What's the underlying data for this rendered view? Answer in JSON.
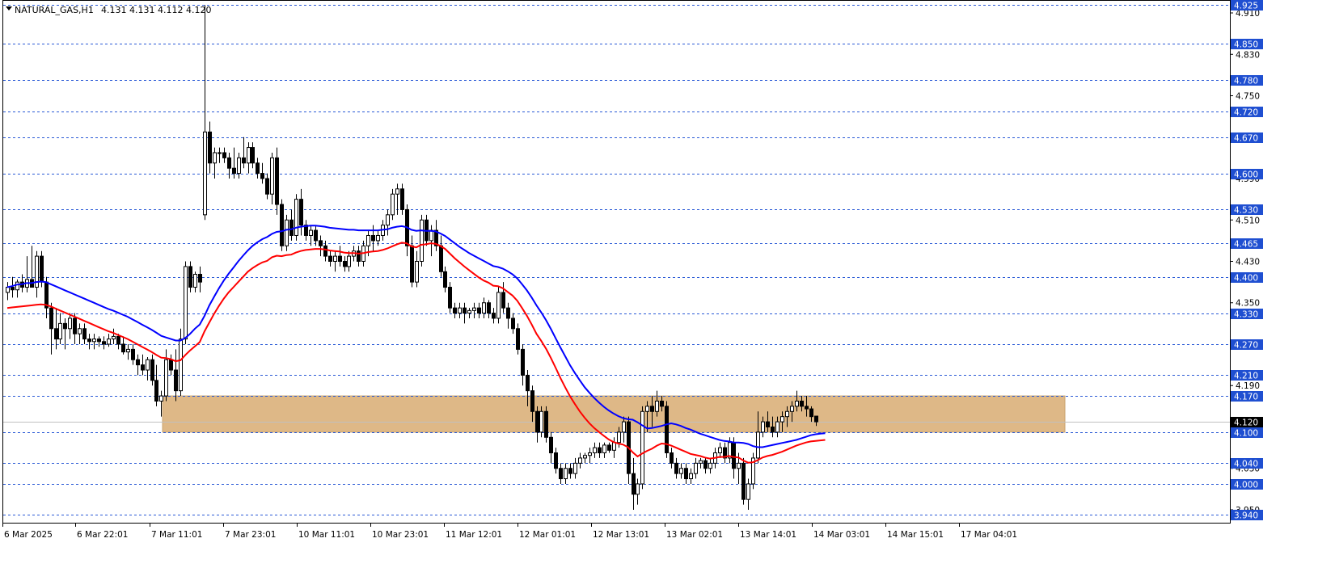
{
  "header": {
    "symbol_timeframe": "NATURAL_GAS,H1",
    "ohlc": "4.131 4.131 4.112 4.120"
  },
  "colors": {
    "background": "#ffffff",
    "level_line": "#2a5ad6",
    "level_tag_bg": "#1f4fd1",
    "zone_fill": "#deb887",
    "ma_fast": "#0000ff",
    "ma_slow": "#ff0000",
    "candle_bear": "#000000",
    "candle_bull": "#ffffff",
    "current_tag_bg": "#000000"
  },
  "chart_data": {
    "type": "candlestick",
    "instrument": "NATURAL_GAS",
    "timeframe": "H1",
    "y_range": [
      3.925,
      4.935
    ],
    "price_axis_ticks": [
      "4.910",
      "4.830",
      "4.750",
      "4.670",
      "4.590",
      "4.510",
      "4.430",
      "4.350",
      "4.270",
      "4.190",
      "4.110",
      "4.030",
      "3.950"
    ],
    "time_labels": [
      "6 Mar 2025",
      "6 Mar 22:01",
      "7 Mar 11:01",
      "7 Mar 23:01",
      "10 Mar 11:01",
      "10 Mar 23:01",
      "11 Mar 12:01",
      "12 Mar 01:01",
      "12 Mar 13:01",
      "13 Mar 02:01",
      "13 Mar 14:01",
      "14 Mar 03:01",
      "14 Mar 15:01",
      "17 Mar 04:01"
    ],
    "horizontal_levels": [
      "4.925",
      "4.850",
      "4.780",
      "4.720",
      "4.670",
      "4.600",
      "4.530",
      "4.465",
      "4.400",
      "4.330",
      "4.270",
      "4.210",
      "4.170",
      "4.100",
      "4.040",
      "4.000",
      "3.940"
    ],
    "current_price": "4.120",
    "zone": {
      "from": 4.1,
      "to": 4.17
    },
    "candles": [
      [
        4.37,
        4.39,
        4.355,
        4.38
      ],
      [
        4.38,
        4.4,
        4.36,
        4.375
      ],
      [
        4.375,
        4.395,
        4.36,
        4.39
      ],
      [
        4.39,
        4.405,
        4.37,
        4.38
      ],
      [
        4.38,
        4.44,
        4.37,
        4.395
      ],
      [
        4.395,
        4.46,
        4.38,
        4.38
      ],
      [
        4.38,
        4.45,
        4.36,
        4.44
      ],
      [
        4.44,
        4.45,
        4.38,
        4.39
      ],
      [
        4.39,
        4.4,
        4.32,
        4.34
      ],
      [
        4.34,
        4.35,
        4.25,
        4.3
      ],
      [
        4.3,
        4.34,
        4.26,
        4.28
      ],
      [
        4.28,
        4.33,
        4.27,
        4.31
      ],
      [
        4.31,
        4.32,
        4.26,
        4.3
      ],
      [
        4.3,
        4.33,
        4.28,
        4.32
      ],
      [
        4.32,
        4.33,
        4.27,
        4.29
      ],
      [
        4.29,
        4.31,
        4.27,
        4.3
      ],
      [
        4.3,
        4.31,
        4.27,
        4.28
      ],
      [
        4.28,
        4.29,
        4.26,
        4.275
      ],
      [
        4.275,
        4.29,
        4.26,
        4.28
      ],
      [
        4.28,
        4.285,
        4.265,
        4.275
      ],
      [
        4.275,
        4.285,
        4.26,
        4.27
      ],
      [
        4.27,
        4.29,
        4.265,
        4.28
      ],
      [
        4.28,
        4.3,
        4.27,
        4.285
      ],
      [
        4.285,
        4.29,
        4.26,
        4.27
      ],
      [
        4.27,
        4.285,
        4.25,
        4.255
      ],
      [
        4.255,
        4.27,
        4.24,
        4.26
      ],
      [
        4.26,
        4.27,
        4.23,
        4.24
      ],
      [
        4.24,
        4.25,
        4.21,
        4.23
      ],
      [
        4.23,
        4.25,
        4.21,
        4.22
      ],
      [
        4.22,
        4.245,
        4.2,
        4.24
      ],
      [
        4.24,
        4.25,
        4.19,
        4.2
      ],
      [
        4.2,
        4.23,
        4.15,
        4.16
      ],
      [
        4.16,
        4.18,
        4.13,
        4.17
      ],
      [
        4.17,
        4.26,
        4.16,
        4.24
      ],
      [
        4.24,
        4.25,
        4.21,
        4.22
      ],
      [
        4.22,
        4.26,
        4.16,
        4.18
      ],
      [
        4.18,
        4.3,
        4.17,
        4.28
      ],
      [
        4.28,
        4.43,
        4.27,
        4.42
      ],
      [
        4.42,
        4.43,
        4.37,
        4.38
      ],
      [
        4.38,
        4.41,
        4.37,
        4.405
      ],
      [
        4.405,
        4.42,
        4.37,
        4.39
      ],
      [
        4.52,
        4.925,
        4.51,
        4.68
      ],
      [
        4.68,
        4.7,
        4.6,
        4.62
      ],
      [
        4.62,
        4.65,
        4.59,
        4.64
      ],
      [
        4.64,
        4.65,
        4.62,
        4.64
      ],
      [
        4.64,
        4.65,
        4.62,
        4.63
      ],
      [
        4.63,
        4.64,
        4.59,
        4.61
      ],
      [
        4.61,
        4.65,
        4.59,
        4.6
      ],
      [
        4.6,
        4.64,
        4.59,
        4.63
      ],
      [
        4.63,
        4.67,
        4.61,
        4.62
      ],
      [
        4.62,
        4.66,
        4.6,
        4.65
      ],
      [
        4.65,
        4.66,
        4.61,
        4.62
      ],
      [
        4.62,
        4.63,
        4.59,
        4.6
      ],
      [
        4.6,
        4.62,
        4.58,
        4.59
      ],
      [
        4.59,
        4.6,
        4.55,
        4.56
      ],
      [
        4.56,
        4.64,
        4.54,
        4.63
      ],
      [
        4.63,
        4.65,
        4.52,
        4.54
      ],
      [
        4.54,
        4.55,
        4.45,
        4.46
      ],
      [
        4.46,
        4.52,
        4.45,
        4.51
      ],
      [
        4.51,
        4.53,
        4.47,
        4.48
      ],
      [
        4.48,
        4.56,
        4.47,
        4.55
      ],
      [
        4.55,
        4.57,
        4.48,
        4.5
      ],
      [
        4.5,
        4.51,
        4.47,
        4.48
      ],
      [
        4.48,
        4.5,
        4.46,
        4.49
      ],
      [
        4.49,
        4.5,
        4.46,
        4.47
      ],
      [
        4.47,
        4.48,
        4.44,
        4.46
      ],
      [
        4.46,
        4.47,
        4.43,
        4.44
      ],
      [
        4.44,
        4.45,
        4.42,
        4.43
      ],
      [
        4.43,
        4.45,
        4.41,
        4.44
      ],
      [
        4.44,
        4.46,
        4.42,
        4.43
      ],
      [
        4.43,
        4.44,
        4.41,
        4.42
      ],
      [
        4.42,
        4.45,
        4.41,
        4.44
      ],
      [
        4.44,
        4.46,
        4.43,
        4.45
      ],
      [
        4.45,
        4.46,
        4.42,
        4.43
      ],
      [
        4.43,
        4.47,
        4.42,
        4.46
      ],
      [
        4.46,
        4.49,
        4.44,
        4.48
      ],
      [
        4.48,
        4.5,
        4.45,
        4.47
      ],
      [
        4.47,
        4.49,
        4.46,
        4.48
      ],
      [
        4.48,
        4.51,
        4.47,
        4.5
      ],
      [
        4.5,
        4.53,
        4.48,
        4.52
      ],
      [
        4.52,
        4.57,
        4.51,
        4.56
      ],
      [
        4.56,
        4.58,
        4.52,
        4.57
      ],
      [
        4.57,
        4.58,
        4.52,
        4.53
      ],
      [
        4.53,
        4.54,
        4.44,
        4.46
      ],
      [
        4.46,
        4.48,
        4.38,
        4.39
      ],
      [
        4.39,
        4.45,
        4.38,
        4.43
      ],
      [
        4.43,
        4.52,
        4.42,
        4.51
      ],
      [
        4.51,
        4.52,
        4.46,
        4.47
      ],
      [
        4.47,
        4.5,
        4.44,
        4.49
      ],
      [
        4.49,
        4.51,
        4.45,
        4.46
      ],
      [
        4.46,
        4.48,
        4.4,
        4.41
      ],
      [
        4.41,
        4.42,
        4.37,
        4.38
      ],
      [
        4.38,
        4.39,
        4.33,
        4.34
      ],
      [
        4.34,
        4.35,
        4.32,
        4.33
      ],
      [
        4.33,
        4.35,
        4.32,
        4.34
      ],
      [
        4.34,
        4.35,
        4.31,
        4.33
      ],
      [
        4.33,
        4.34,
        4.32,
        4.335
      ],
      [
        4.335,
        4.35,
        4.32,
        4.34
      ],
      [
        4.34,
        4.35,
        4.32,
        4.33
      ],
      [
        4.33,
        4.36,
        4.32,
        4.35
      ],
      [
        4.35,
        4.355,
        4.32,
        4.33
      ],
      [
        4.33,
        4.34,
        4.31,
        4.32
      ],
      [
        4.32,
        4.38,
        4.31,
        4.37
      ],
      [
        4.37,
        4.39,
        4.33,
        4.34
      ],
      [
        4.34,
        4.35,
        4.3,
        4.32
      ],
      [
        4.32,
        4.33,
        4.29,
        4.3
      ],
      [
        4.3,
        4.31,
        4.25,
        4.26
      ],
      [
        4.26,
        4.27,
        4.19,
        4.21
      ],
      [
        4.21,
        4.22,
        4.15,
        4.18
      ],
      [
        4.18,
        4.19,
        4.12,
        4.14
      ],
      [
        4.14,
        4.15,
        4.08,
        4.1
      ],
      [
        4.1,
        4.15,
        4.09,
        4.14
      ],
      [
        4.14,
        4.15,
        4.08,
        4.09
      ],
      [
        4.09,
        4.1,
        4.04,
        4.06
      ],
      [
        4.06,
        4.07,
        4.02,
        4.03
      ],
      [
        4.03,
        4.04,
        4.0,
        4.01
      ],
      [
        4.01,
        4.04,
        4.0,
        4.03
      ],
      [
        4.03,
        4.04,
        4.01,
        4.02
      ],
      [
        4.02,
        4.05,
        4.01,
        4.04
      ],
      [
        4.04,
        4.06,
        4.03,
        4.05
      ],
      [
        4.05,
        4.06,
        4.04,
        4.055
      ],
      [
        4.055,
        4.07,
        4.04,
        4.06
      ],
      [
        4.06,
        4.08,
        4.05,
        4.07
      ],
      [
        4.07,
        4.08,
        4.05,
        4.06
      ],
      [
        4.06,
        4.08,
        4.05,
        4.075
      ],
      [
        4.075,
        4.08,
        4.06,
        4.065
      ],
      [
        4.065,
        4.09,
        4.05,
        4.08
      ],
      [
        4.08,
        4.11,
        4.07,
        4.1
      ],
      [
        4.1,
        4.13,
        4.08,
        4.12
      ],
      [
        4.12,
        4.13,
        4.0,
        4.02
      ],
      [
        4.02,
        4.05,
        3.95,
        3.98
      ],
      [
        3.98,
        4.01,
        3.96,
        4.0
      ],
      [
        4.0,
        4.15,
        3.99,
        4.14
      ],
      [
        4.14,
        4.16,
        4.1,
        4.15
      ],
      [
        4.15,
        4.17,
        4.11,
        4.14
      ],
      [
        4.14,
        4.18,
        4.13,
        4.16
      ],
      [
        4.16,
        4.17,
        4.14,
        4.15
      ],
      [
        4.15,
        4.16,
        4.05,
        4.06
      ],
      [
        4.06,
        4.07,
        4.03,
        4.04
      ],
      [
        4.04,
        4.05,
        4.01,
        4.02
      ],
      [
        4.02,
        4.04,
        4.01,
        4.03
      ],
      [
        4.03,
        4.04,
        4.0,
        4.01
      ],
      [
        4.01,
        4.03,
        4.0,
        4.02
      ],
      [
        4.02,
        4.05,
        4.01,
        4.04
      ],
      [
        4.04,
        4.05,
        4.03,
        4.045
      ],
      [
        4.045,
        4.05,
        4.02,
        4.03
      ],
      [
        4.03,
        4.05,
        4.02,
        4.04
      ],
      [
        4.04,
        4.07,
        4.03,
        4.06
      ],
      [
        4.06,
        4.08,
        4.05,
        4.07
      ],
      [
        4.07,
        4.08,
        4.04,
        4.05
      ],
      [
        4.05,
        4.09,
        4.04,
        4.08
      ],
      [
        4.08,
        4.09,
        4.01,
        4.03
      ],
      [
        4.03,
        4.06,
        4.0,
        4.04
      ],
      [
        4.04,
        4.05,
        3.96,
        3.97
      ],
      [
        3.97,
        4.01,
        3.95,
        4.0
      ],
      [
        4.0,
        4.06,
        3.99,
        4.05
      ],
      [
        4.05,
        4.14,
        4.04,
        4.1
      ],
      [
        4.1,
        4.13,
        4.09,
        4.12
      ],
      [
        4.12,
        4.14,
        4.1,
        4.11
      ],
      [
        4.11,
        4.13,
        4.09,
        4.1
      ],
      [
        4.1,
        4.13,
        4.09,
        4.12
      ],
      [
        4.12,
        4.14,
        4.1,
        4.13
      ],
      [
        4.13,
        4.15,
        4.11,
        4.14
      ],
      [
        4.14,
        4.16,
        4.12,
        4.15
      ],
      [
        4.15,
        4.18,
        4.14,
        4.16
      ],
      [
        4.16,
        4.17,
        4.14,
        4.15
      ],
      [
        4.15,
        4.17,
        4.13,
        4.145
      ],
      [
        4.145,
        4.15,
        4.12,
        4.13
      ],
      [
        4.131,
        4.131,
        4.112,
        4.12
      ]
    ],
    "ma_fast": [
      4.38,
      4.382,
      4.385,
      4.386,
      4.388,
      4.388,
      4.39,
      4.391,
      4.39,
      4.386,
      4.382,
      4.378,
      4.374,
      4.37,
      4.366,
      4.362,
      4.358,
      4.354,
      4.35,
      4.346,
      4.342,
      4.338,
      4.335,
      4.331,
      4.327,
      4.323,
      4.318,
      4.313,
      4.308,
      4.303,
      4.298,
      4.292,
      4.286,
      4.283,
      4.28,
      4.277,
      4.277,
      4.282,
      4.29,
      4.3,
      4.308,
      4.325,
      4.345,
      4.362,
      4.378,
      4.393,
      4.406,
      4.418,
      4.43,
      4.441,
      4.451,
      4.46,
      4.467,
      4.473,
      4.477,
      4.483,
      4.487,
      4.488,
      4.491,
      4.492,
      4.495,
      4.497,
      4.498,
      4.499,
      4.499,
      4.498,
      4.497,
      4.495,
      4.494,
      4.493,
      4.492,
      4.491,
      4.491,
      4.49,
      4.49,
      4.49,
      4.49,
      4.49,
      4.491,
      4.492,
      4.495,
      4.497,
      4.498,
      4.496,
      4.491,
      4.489,
      4.49,
      4.489,
      4.489,
      4.488,
      4.484,
      4.479,
      4.472,
      4.465,
      4.458,
      4.452,
      4.446,
      4.441,
      4.436,
      4.431,
      4.426,
      4.421,
      4.419,
      4.416,
      4.411,
      4.405,
      4.397,
      4.386,
      4.374,
      4.36,
      4.345,
      4.331,
      4.316,
      4.299,
      4.281,
      4.263,
      4.246,
      4.229,
      4.214,
      4.2,
      4.187,
      4.176,
      4.166,
      4.157,
      4.149,
      4.142,
      4.136,
      4.131,
      4.127,
      4.125,
      4.124,
      4.119,
      4.113,
      4.107,
      4.108,
      4.11,
      4.112,
      4.115,
      4.117,
      4.115,
      4.112,
      4.108,
      4.105,
      4.101,
      4.097,
      4.094,
      4.091,
      4.088,
      4.085,
      4.083,
      4.082,
      4.08,
      4.08,
      4.079,
      4.077,
      4.073,
      4.071,
      4.071,
      4.073,
      4.075,
      4.077,
      4.079,
      4.081,
      4.083,
      4.085,
      4.088,
      4.091,
      4.094,
      4.096,
      4.097,
      4.098
    ],
    "ma_slow": [
      4.34,
      4.341,
      4.342,
      4.343,
      4.344,
      4.345,
      4.346,
      4.347,
      4.346,
      4.343,
      4.339,
      4.335,
      4.331,
      4.327,
      4.323,
      4.319,
      4.315,
      4.311,
      4.307,
      4.303,
      4.299,
      4.295,
      4.292,
      4.288,
      4.284,
      4.28,
      4.275,
      4.27,
      4.265,
      4.26,
      4.255,
      4.249,
      4.244,
      4.243,
      4.241,
      4.237,
      4.239,
      4.249,
      4.258,
      4.266,
      4.274,
      4.295,
      4.312,
      4.329,
      4.344,
      4.358,
      4.37,
      4.38,
      4.39,
      4.4,
      4.41,
      4.417,
      4.423,
      4.428,
      4.431,
      4.438,
      4.441,
      4.44,
      4.442,
      4.443,
      4.447,
      4.45,
      4.452,
      4.453,
      4.454,
      4.454,
      4.453,
      4.451,
      4.45,
      4.449,
      4.447,
      4.446,
      4.446,
      4.445,
      4.446,
      4.448,
      4.449,
      4.45,
      4.452,
      4.455,
      4.459,
      4.463,
      4.466,
      4.465,
      4.459,
      4.457,
      4.462,
      4.463,
      4.465,
      4.464,
      4.46,
      4.454,
      4.445,
      4.436,
      4.428,
      4.42,
      4.413,
      4.406,
      4.399,
      4.393,
      4.389,
      4.383,
      4.382,
      4.378,
      4.371,
      4.364,
      4.354,
      4.34,
      4.325,
      4.308,
      4.29,
      4.276,
      4.261,
      4.243,
      4.224,
      4.204,
      4.186,
      4.169,
      4.154,
      4.14,
      4.128,
      4.117,
      4.108,
      4.1,
      4.093,
      4.086,
      4.081,
      4.078,
      4.076,
      4.071,
      4.061,
      4.053,
      4.059,
      4.064,
      4.068,
      4.074,
      4.078,
      4.077,
      4.074,
      4.07,
      4.066,
      4.062,
      4.058,
      4.056,
      4.054,
      4.051,
      4.049,
      4.05,
      4.052,
      4.052,
      4.054,
      4.052,
      4.051,
      4.045,
      4.041,
      4.042,
      4.046,
      4.051,
      4.054,
      4.056,
      4.059,
      4.062,
      4.066,
      4.07,
      4.074,
      4.077,
      4.08,
      4.082,
      4.083,
      4.084,
      4.085
    ]
  }
}
